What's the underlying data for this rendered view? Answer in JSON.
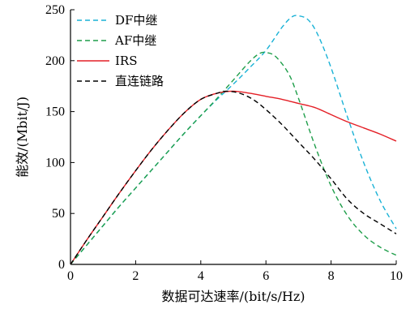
{
  "chart_data": {
    "type": "line",
    "xlabel": "数据可达速率/(bit/s/Hz)",
    "ylabel": "能效/(Mbit/J)",
    "xlim": [
      0,
      10
    ],
    "ylim": [
      0,
      250
    ],
    "xticks": [
      0,
      2,
      4,
      6,
      8,
      10
    ],
    "yticks": [
      0,
      50,
      100,
      150,
      200,
      250
    ],
    "grid": false,
    "legend_position": "top-left",
    "series": [
      {
        "name": "DF中继",
        "color": "#1ab2d6",
        "dash": "dashed",
        "points": [
          [
            0,
            0
          ],
          [
            0.5,
            19
          ],
          [
            1,
            38
          ],
          [
            1.5,
            57
          ],
          [
            2,
            75
          ],
          [
            2.5,
            93
          ],
          [
            3,
            111
          ],
          [
            3.5,
            129
          ],
          [
            4,
            146
          ],
          [
            4.5,
            162
          ],
          [
            5,
            177
          ],
          [
            5.5,
            193
          ],
          [
            6,
            210
          ],
          [
            6.5,
            233
          ],
          [
            6.8,
            243
          ],
          [
            7,
            244
          ],
          [
            7.3,
            240
          ],
          [
            7.6,
            225
          ],
          [
            8,
            193
          ],
          [
            8.5,
            145
          ],
          [
            9,
            100
          ],
          [
            9.5,
            63
          ],
          [
            10,
            35
          ]
        ]
      },
      {
        "name": "AF中继",
        "color": "#1f9e4a",
        "dash": "dashed",
        "points": [
          [
            0,
            0
          ],
          [
            0.5,
            19
          ],
          [
            1,
            38
          ],
          [
            1.5,
            57
          ],
          [
            2,
            75
          ],
          [
            2.5,
            93
          ],
          [
            3,
            111
          ],
          [
            3.5,
            129
          ],
          [
            4,
            146
          ],
          [
            4.5,
            163
          ],
          [
            5,
            181
          ],
          [
            5.5,
            199
          ],
          [
            5.8,
            207
          ],
          [
            6,
            208
          ],
          [
            6.3,
            204
          ],
          [
            6.7,
            187
          ],
          [
            7,
            163
          ],
          [
            7.5,
            117
          ],
          [
            8,
            77
          ],
          [
            8.5,
            48
          ],
          [
            9,
            29
          ],
          [
            9.5,
            17
          ],
          [
            10,
            9
          ]
        ]
      },
      {
        "name": "IRS",
        "color": "#e41f26",
        "dash": "solid",
        "points": [
          [
            0,
            0
          ],
          [
            0.5,
            24
          ],
          [
            1,
            47
          ],
          [
            1.5,
            70
          ],
          [
            2,
            92
          ],
          [
            2.5,
            113
          ],
          [
            3,
            132
          ],
          [
            3.5,
            149
          ],
          [
            4,
            162
          ],
          [
            4.5,
            168
          ],
          [
            5,
            170
          ],
          [
            5.5,
            168
          ],
          [
            6,
            165
          ],
          [
            6.5,
            162
          ],
          [
            7,
            158
          ],
          [
            7.5,
            154
          ],
          [
            8,
            147
          ],
          [
            8.5,
            140
          ],
          [
            9,
            134
          ],
          [
            9.5,
            128
          ],
          [
            10,
            121
          ]
        ]
      },
      {
        "name": "直连链路",
        "color": "#000000",
        "dash": "dashed",
        "points": [
          [
            0,
            0
          ],
          [
            0.5,
            24
          ],
          [
            1,
            47
          ],
          [
            1.5,
            70
          ],
          [
            2,
            92
          ],
          [
            2.5,
            113
          ],
          [
            3,
            132
          ],
          [
            3.5,
            149
          ],
          [
            4,
            162
          ],
          [
            4.5,
            168
          ],
          [
            4.8,
            170
          ],
          [
            5.2,
            168
          ],
          [
            5.6,
            162
          ],
          [
            6,
            152
          ],
          [
            6.5,
            137
          ],
          [
            7,
            120
          ],
          [
            7.5,
            103
          ],
          [
            8,
            84
          ],
          [
            8.5,
            64
          ],
          [
            9,
            50
          ],
          [
            9.5,
            40
          ],
          [
            10,
            30
          ]
        ]
      }
    ]
  }
}
